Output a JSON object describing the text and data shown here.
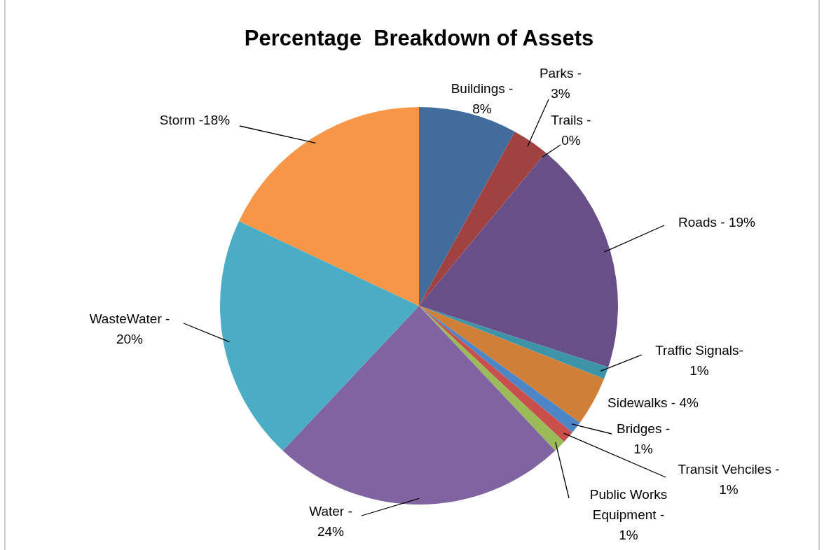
{
  "chart_data": {
    "type": "pie",
    "title": "Percentage  Breakdown of Assets",
    "categories": [
      "Buildings -\n8%",
      "Parks -\n3%",
      "Trails -\n0%",
      "Roads - 19%",
      "Traffic Signals-\n1%",
      "Sidewalks - 4%",
      "Bridges -\n1%",
      "Transit Vehciles -\n1%",
      "Public Works\nEquipment -\n1%",
      "Water -\n24%",
      "WasteWater -\n20%",
      "Storm -18%"
    ],
    "values": [
      8,
      3,
      0,
      19,
      1,
      4,
      1,
      1,
      1,
      24,
      20,
      18
    ],
    "colors": [
      "#416c9c",
      "#a04340",
      "#8cb040",
      "#694f88",
      "#3d93a8",
      "#d07f38",
      "#4d86c6",
      "#c94f4c",
      "#9bbb59",
      "#8064a2",
      "#4bacc6",
      "#f79646"
    ]
  }
}
